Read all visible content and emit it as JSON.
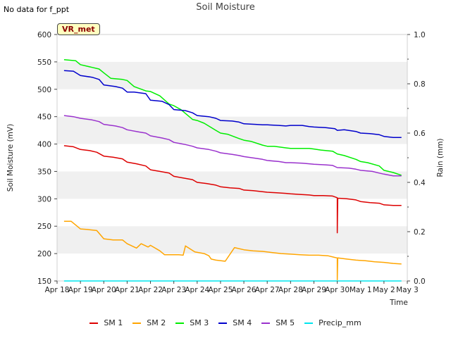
{
  "notice": "No data for f_ppt",
  "badge": "VR_met",
  "chart_data": {
    "type": "line",
    "title": "Soil Moisture",
    "xlabel": "Time",
    "ylabel": "Soil Moisture (mV)",
    "y2label": "Rain (mm)",
    "xlim": [
      0,
      15
    ],
    "ylim": [
      150,
      600
    ],
    "y2lim": [
      0.0,
      1.0
    ],
    "x_ticks": [
      0,
      1,
      2,
      3,
      4,
      5,
      6,
      7,
      8,
      9,
      10,
      11,
      12,
      13,
      14,
      15
    ],
    "x_tick_labels": [
      "Apr 18",
      "Apr 19",
      "Apr 20",
      "Apr 21",
      "Apr 22",
      "Apr 23",
      "Apr 24",
      "Apr 25",
      "Apr 26",
      "Apr 27",
      "Apr 28",
      "Apr 29",
      "Apr 30",
      "May 1",
      "May 2",
      "May 3"
    ],
    "y_ticks": [
      150,
      200,
      250,
      300,
      350,
      400,
      450,
      500,
      550,
      600
    ],
    "y_tick_labels": [
      "150",
      "200",
      "250",
      "300",
      "350",
      "400",
      "450",
      "500",
      "550",
      "600"
    ],
    "y2_ticks": [
      0.0,
      0.2,
      0.4,
      0.6,
      0.8,
      1.0
    ],
    "y2_tick_labels": [
      "0.0",
      "0.2",
      "0.4",
      "0.6",
      "0.8",
      "1.0"
    ],
    "grid": "horizontal bands",
    "legend_position": "bottom",
    "series": [
      {
        "name": "SM 1",
        "color": "#dd0000",
        "x": [
          0.3,
          0.7,
          1.0,
          1.4,
          1.7,
          2.0,
          2.4,
          2.8,
          3.0,
          3.4,
          3.8,
          4.0,
          4.4,
          4.8,
          5.0,
          5.4,
          5.8,
          6.0,
          6.4,
          6.8,
          7.0,
          7.4,
          7.8,
          8.0,
          8.4,
          8.8,
          9.0,
          9.4,
          9.8,
          10.0,
          10.4,
          10.8,
          11.0,
          11.4,
          11.8,
          12.0,
          12.0,
          12.02,
          12.1,
          12.4,
          12.8,
          13.0,
          13.4,
          13.8,
          14.0,
          14.4,
          14.75
        ],
        "y": [
          397,
          395,
          390,
          388,
          385,
          378,
          376,
          373,
          367,
          364,
          360,
          353,
          350,
          347,
          341,
          338,
          335,
          330,
          328,
          325,
          322,
          320,
          319,
          316,
          315,
          313,
          312,
          311,
          310,
          309,
          308,
          307,
          306,
          306,
          305,
          302,
          238,
          301,
          301,
          300,
          298,
          295,
          293,
          292,
          289,
          288,
          288
        ]
      },
      {
        "name": "SM 2",
        "color": "#ffa500",
        "x": [
          0.3,
          0.6,
          1.0,
          1.3,
          1.7,
          2.0,
          2.4,
          2.8,
          3.0,
          3.4,
          3.6,
          3.9,
          4.0,
          4.4,
          4.6,
          4.8,
          4.85,
          5.2,
          5.4,
          5.5,
          5.9,
          6.3,
          6.5,
          6.6,
          6.8,
          7.2,
          7.6,
          8.0,
          8.4,
          8.8,
          9.2,
          9.6,
          10.0,
          10.4,
          10.8,
          11.2,
          11.6,
          11.9,
          12.0,
          12.0,
          12.02,
          12.4,
          12.8,
          13.2,
          13.6,
          14.0,
          14.4,
          14.75
        ],
        "y": [
          259,
          259,
          245,
          244,
          242,
          227,
          225,
          225,
          218,
          210,
          218,
          212,
          215,
          205,
          198,
          198,
          198,
          198,
          197,
          214,
          203,
          200,
          196,
          190,
          188,
          186,
          211,
          207,
          205,
          204,
          202,
          200,
          199,
          198,
          197,
          197,
          196,
          193,
          192,
          152,
          192,
          190,
          188,
          187,
          185,
          184,
          182,
          181
        ]
      },
      {
        "name": "SM 3",
        "color": "#00ee00",
        "x": [
          0.3,
          0.8,
          1.0,
          1.5,
          1.8,
          2.0,
          2.3,
          2.8,
          3.0,
          3.3,
          3.8,
          4.0,
          4.4,
          4.8,
          5.0,
          5.3,
          5.8,
          6.0,
          6.3,
          6.8,
          7.0,
          7.3,
          7.8,
          8.0,
          8.3,
          8.8,
          9.0,
          9.3,
          9.8,
          10.0,
          10.3,
          10.8,
          11.0,
          11.3,
          11.8,
          12.0,
          12.3,
          12.8,
          13.0,
          13.3,
          13.8,
          14.0,
          14.4,
          14.75
        ],
        "y": [
          554,
          552,
          545,
          540,
          537,
          530,
          520,
          518,
          516,
          505,
          497,
          496,
          488,
          473,
          470,
          463,
          445,
          443,
          438,
          425,
          420,
          418,
          410,
          407,
          405,
          398,
          396,
          396,
          393,
          392,
          392,
          392,
          391,
          389,
          387,
          382,
          379,
          372,
          368,
          366,
          360,
          352,
          348,
          343
        ]
      },
      {
        "name": "SM 4",
        "color": "#0000cc",
        "x": [
          0.3,
          0.7,
          1.0,
          1.5,
          1.8,
          2.0,
          2.5,
          2.8,
          3.0,
          3.3,
          3.8,
          4.0,
          4.5,
          4.8,
          5.0,
          5.5,
          5.8,
          6.0,
          6.5,
          6.8,
          7.0,
          7.5,
          7.8,
          8.0,
          8.5,
          8.8,
          9.0,
          9.5,
          9.8,
          10.0,
          10.5,
          10.8,
          11.0,
          11.5,
          11.9,
          12.0,
          12.3,
          12.8,
          13.0,
          13.4,
          13.8,
          14.0,
          14.4,
          14.75
        ],
        "y": [
          534,
          533,
          525,
          522,
          518,
          508,
          505,
          502,
          495,
          495,
          492,
          480,
          478,
          472,
          463,
          461,
          457,
          452,
          450,
          447,
          443,
          442,
          440,
          437,
          436,
          435,
          435,
          434,
          433,
          434,
          434,
          432,
          431,
          430,
          428,
          425,
          426,
          423,
          420,
          419,
          417,
          414,
          412,
          412
        ]
      },
      {
        "name": "SM 5",
        "color": "#9a32cd",
        "x": [
          0.3,
          0.7,
          1.0,
          1.5,
          1.8,
          2.0,
          2.5,
          2.8,
          3.0,
          3.5,
          3.8,
          4.0,
          4.5,
          4.8,
          5.0,
          5.5,
          5.8,
          6.0,
          6.5,
          6.8,
          7.0,
          7.5,
          7.8,
          8.0,
          8.5,
          8.8,
          9.0,
          9.5,
          9.8,
          10.0,
          10.5,
          10.8,
          11.0,
          11.5,
          11.8,
          12.0,
          12.5,
          12.8,
          13.0,
          13.5,
          13.8,
          14.0,
          14.4,
          14.75
        ],
        "y": [
          452,
          450,
          447,
          444,
          441,
          436,
          433,
          430,
          426,
          422,
          420,
          415,
          411,
          408,
          403,
          399,
          396,
          393,
          390,
          387,
          384,
          381,
          379,
          377,
          374,
          372,
          370,
          368,
          366,
          366,
          365,
          364,
          363,
          362,
          361,
          357,
          356,
          354,
          352,
          350,
          347,
          345,
          342,
          342
        ]
      },
      {
        "name": "Precip_mm",
        "color": "#00e5ee",
        "axis": "right",
        "x": [
          0.3,
          14.75
        ],
        "y": [
          0.0,
          0.0
        ]
      }
    ]
  }
}
